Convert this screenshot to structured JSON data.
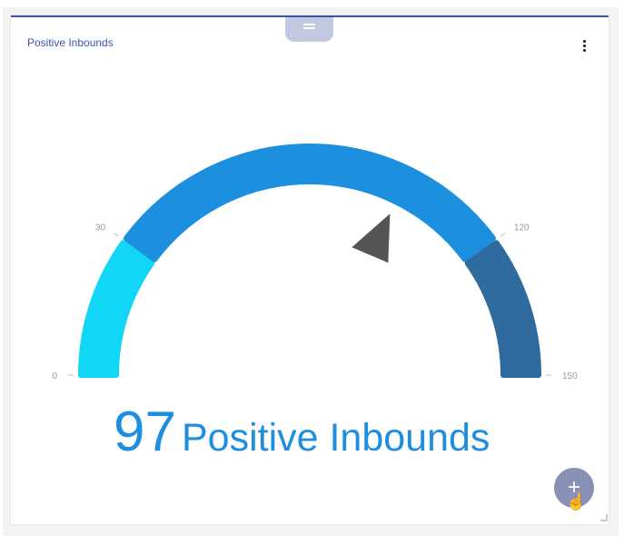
{
  "widget": {
    "title": "Positive Inbounds",
    "menu_icon": "more-vert-icon",
    "drag_icon": "drag-handle-icon"
  },
  "gauge": {
    "value": 97,
    "label": "Positive Inbounds",
    "min": 0,
    "max": 150,
    "ticks": [
      "0",
      "30",
      "120",
      "150"
    ],
    "bands": [
      {
        "from": 0,
        "to": 30,
        "color": "#12d6f5"
      },
      {
        "from": 30,
        "to": 120,
        "color": "#1c8fdf"
      },
      {
        "from": 120,
        "to": 150,
        "color": "#2f6b9e"
      }
    ],
    "pointer_color": "#555555",
    "value_color": "#1e8ede"
  },
  "fab": {
    "label": "+",
    "icon": "plus-icon"
  }
}
